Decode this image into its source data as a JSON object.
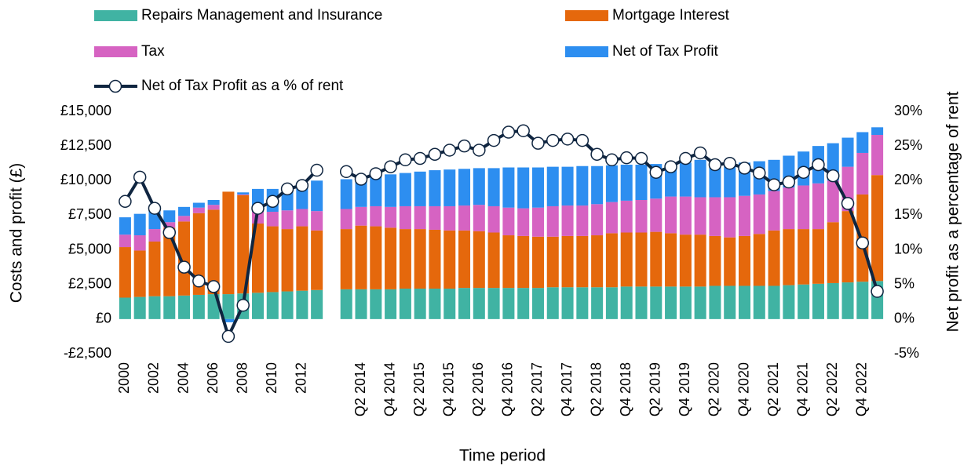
{
  "chart_data": {
    "type": "bar",
    "stacked": true,
    "x_label": "Time period",
    "y_label": "Costs and profit (£)",
    "y2_label": "Net profit as a percentage of rent",
    "legend": "top",
    "grid": false,
    "categories": [
      "2000",
      null,
      "2002",
      null,
      "2004",
      null,
      "2006",
      null,
      "2008",
      null,
      "2010",
      null,
      "2012",
      null,
      null,
      null,
      "Q2 2014",
      null,
      "Q4 2014",
      null,
      "Q2 2015",
      null,
      "Q4 2015",
      null,
      "Q2 2016",
      null,
      "Q4 2016",
      null,
      "Q2 2017",
      null,
      "Q4 2017",
      null,
      "Q2 2018",
      null,
      "Q4 2018",
      null,
      "Q2 2019",
      null,
      "Q4 2019",
      null,
      "Q2 2020",
      null,
      "Q4 2020",
      null,
      "Q2 2021",
      null,
      "Q4 2021",
      null,
      "Q2 2022",
      null,
      "Q4 2022",
      null
    ],
    "series": [
      {
        "name": "Repairs Management and Insurance",
        "color": "#40b3a3",
        "values": [
          1550,
          1600,
          1650,
          1650,
          1700,
          1750,
          1800,
          1800,
          1850,
          1900,
          1950,
          2000,
          2050,
          2100,
          null,
          2150,
          2150,
          2150,
          2150,
          2200,
          2200,
          2200,
          2200,
          2250,
          2250,
          2250,
          2250,
          2250,
          2250,
          2300,
          2300,
          2300,
          2300,
          2300,
          2350,
          2350,
          2350,
          2350,
          2350,
          2350,
          2400,
          2400,
          2400,
          2400,
          2400,
          2450,
          2500,
          2550,
          2600,
          2650,
          2700,
          2750
        ]
      },
      {
        "name": "Mortgage Interest",
        "color": "#e5680c",
        "values": [
          3650,
          3350,
          3950,
          4950,
          5350,
          5900,
          6100,
          7400,
          7100,
          5000,
          4750,
          4500,
          4650,
          4300,
          null,
          4350,
          4600,
          4550,
          4450,
          4300,
          4300,
          4250,
          4200,
          4150,
          4100,
          4000,
          3800,
          3750,
          3700,
          3650,
          3700,
          3700,
          3750,
          3900,
          3900,
          3900,
          3950,
          3850,
          3750,
          3750,
          3600,
          3500,
          3600,
          3750,
          4000,
          4050,
          4000,
          3950,
          4400,
          5150,
          6300,
          7650
        ]
      },
      {
        "name": "Tax",
        "color": "#d663c2",
        "values": [
          900,
          1100,
          900,
          400,
          400,
          400,
          350,
          0,
          50,
          850,
          1050,
          1350,
          1250,
          1400,
          null,
          1450,
          1350,
          1450,
          1500,
          1650,
          1650,
          1700,
          1750,
          1800,
          1900,
          1900,
          2000,
          2000,
          2100,
          2200,
          2200,
          2200,
          2250,
          2250,
          2300,
          2350,
          2400,
          2650,
          2750,
          2700,
          2800,
          2900,
          2900,
          2850,
          2850,
          3000,
          3150,
          3300,
          3000,
          3200,
          3000,
          2900
        ]
      },
      {
        "name": "Net of Tax Profit",
        "color": "#2d8ef0",
        "values": [
          1250,
          1550,
          1350,
          850,
          650,
          350,
          350,
          -230,
          150,
          1650,
          1650,
          1750,
          1900,
          2200,
          null,
          2150,
          2100,
          2200,
          2350,
          2400,
          2500,
          2600,
          2650,
          2650,
          2650,
          2750,
          2900,
          2950,
          2900,
          2850,
          2800,
          2850,
          2750,
          2650,
          2600,
          2550,
          2500,
          2400,
          2450,
          2700,
          2600,
          2500,
          2400,
          2400,
          2250,
          2300,
          2450,
          2700,
          2700,
          2100,
          1500,
          550
        ]
      },
      {
        "name": "Net of Tax Profit as a % of rent",
        "color": "#0f2540",
        "axis": "y2",
        "values": [
          17,
          20.5,
          16,
          12.5,
          7.5,
          5.5,
          4.7,
          -2.5,
          2,
          16,
          17,
          18.8,
          19.3,
          21.5,
          null,
          21.3,
          20.2,
          21,
          22,
          23,
          23.2,
          23.8,
          24.4,
          25,
          24.4,
          25.8,
          27,
          27.2,
          25.4,
          25.8,
          26,
          25.8,
          23.8,
          23,
          23.3,
          23.2,
          21.2,
          22,
          23.2,
          24,
          22.3,
          22.5,
          21.8,
          21.1,
          19.4,
          19.8,
          21.2,
          22.3,
          20.7,
          16.7,
          11,
          4
        ]
      }
    ],
    "ylim": [
      -2500,
      15000
    ],
    "yticks": [
      {
        "value": -2500,
        "label": "-£2,500"
      },
      {
        "value": 0,
        "label": "£0"
      },
      {
        "value": 2500,
        "label": "£2,500"
      },
      {
        "value": 5000,
        "label": "£5,000"
      },
      {
        "value": 7500,
        "label": "£7,500"
      },
      {
        "value": 10000,
        "label": "£10,000"
      },
      {
        "value": 12500,
        "label": "£12,500"
      },
      {
        "value": 15000,
        "label": "£15,000"
      }
    ],
    "y2lim": [
      -5,
      30
    ],
    "y2ticks": [
      {
        "value": -5,
        "label": "-5%"
      },
      {
        "value": 0,
        "label": "0%"
      },
      {
        "value": 5,
        "label": "5%"
      },
      {
        "value": 10,
        "label": "10%"
      },
      {
        "value": 15,
        "label": "15%"
      },
      {
        "value": 20,
        "label": "20%"
      },
      {
        "value": 25,
        "label": "25%"
      },
      {
        "value": 30,
        "label": "30%"
      }
    ]
  }
}
